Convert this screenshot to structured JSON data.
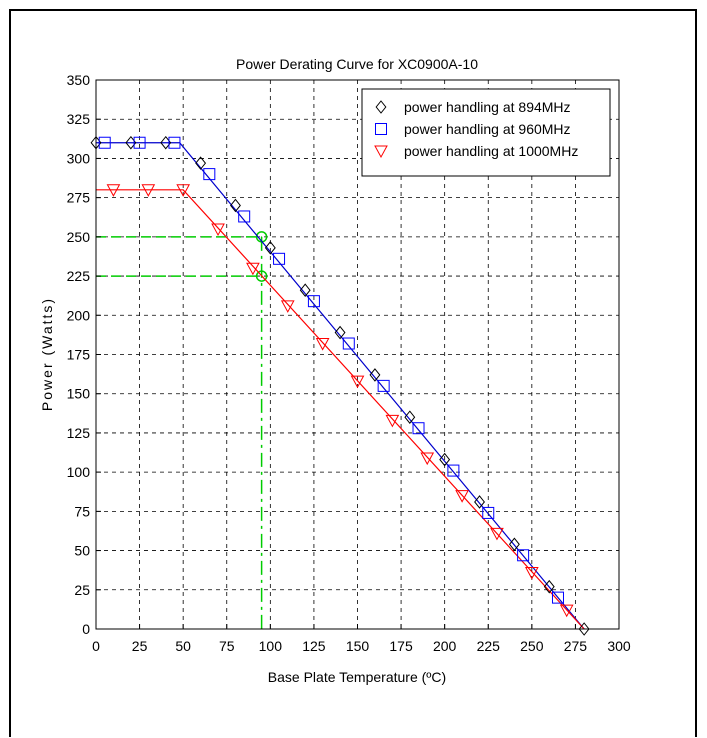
{
  "chart_data": {
    "type": "line",
    "title": "Power Derating Curve for XC0900A-10",
    "xlabel": "Base Plate Temperature (ºC)",
    "ylabel": "Power (Watts)",
    "xlim": [
      0,
      300
    ],
    "ylim": [
      0,
      350
    ],
    "xticks": [
      0,
      25,
      50,
      75,
      100,
      125,
      150,
      175,
      200,
      225,
      250,
      275,
      300
    ],
    "yticks": [
      0,
      25,
      50,
      75,
      100,
      125,
      150,
      175,
      200,
      225,
      250,
      275,
      300,
      325,
      350
    ],
    "grid": true,
    "legend_position": "top-right",
    "series": [
      {
        "name": "power handling at 894MHz",
        "color": "#000000",
        "marker": "diamond",
        "line_color": "#0000cc",
        "x": [
          0,
          20,
          40,
          60,
          80,
          100,
          120,
          140,
          160,
          180,
          200,
          220,
          240,
          260,
          280
        ],
        "y": [
          310,
          310,
          310,
          297,
          270,
          243,
          216,
          189,
          162,
          135,
          108,
          81,
          54,
          27,
          0
        ],
        "line_x": [
          0,
          48,
          280
        ],
        "line_y": [
          310,
          310,
          0
        ]
      },
      {
        "name": "power handling at 960MHz",
        "color": "#0000ff",
        "marker": "square",
        "line_color": "#0000cc",
        "x": [
          5,
          25,
          45,
          65,
          85,
          105,
          125,
          145,
          165,
          185,
          205,
          225,
          245,
          265
        ],
        "y": [
          310,
          310,
          310,
          290,
          263,
          236,
          209,
          182,
          155,
          128,
          101,
          74,
          47,
          20
        ],
        "line_x": [
          0,
          48,
          280
        ],
        "line_y": [
          310,
          310,
          0
        ]
      },
      {
        "name": "power handling at 1000MHz",
        "color": "#ff0000",
        "marker": "triangle-down",
        "line_color": "#ff0000",
        "x": [
          10,
          30,
          50,
          70,
          90,
          110,
          130,
          150,
          170,
          190,
          210,
          230,
          250,
          270
        ],
        "y": [
          280,
          280,
          280,
          255,
          230,
          206,
          182,
          158,
          133,
          109,
          85,
          61,
          36,
          12
        ],
        "line_x": [
          0,
          50,
          280
        ],
        "line_y": [
          280,
          280,
          0
        ]
      }
    ],
    "annotations": {
      "color": "#00cc00",
      "hlines": [
        250,
        225
      ],
      "vline_x": 95,
      "circles": [
        [
          95,
          250
        ],
        [
          95,
          225
        ]
      ]
    }
  }
}
